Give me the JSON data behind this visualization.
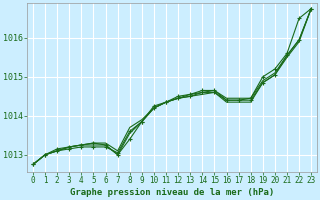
{
  "bg_color": "#cceeff",
  "plot_bg_color": "#cceeff",
  "grid_color": "#ffffff",
  "line_color": "#1a6b1a",
  "xlabel": "Graphe pression niveau de la mer (hPa)",
  "xlim": [
    -0.5,
    23.5
  ],
  "ylim": [
    1012.55,
    1016.9
  ],
  "yticks": [
    1013,
    1014,
    1015,
    1016
  ],
  "xticks": [
    0,
    1,
    2,
    3,
    4,
    5,
    6,
    7,
    8,
    9,
    10,
    11,
    12,
    13,
    14,
    15,
    16,
    17,
    18,
    19,
    20,
    21,
    22,
    23
  ],
  "series": [
    {
      "y": [
        1012.75,
        1013.0,
        1013.1,
        1013.15,
        1013.2,
        1013.2,
        1013.2,
        1013.05,
        1013.6,
        1013.85,
        1014.2,
        1014.35,
        1014.45,
        1014.5,
        1014.6,
        1014.6,
        1014.4,
        1014.4,
        1014.45,
        1015.0,
        1015.2,
        1015.6,
        1016.5,
        1016.75
      ],
      "marker": "+",
      "markersize": 3.5,
      "linewidth": 0.8
    },
    {
      "y": [
        1012.75,
        1013.0,
        1013.1,
        1013.2,
        1013.25,
        1013.25,
        1013.25,
        1013.0,
        1013.55,
        1013.85,
        1014.2,
        1014.35,
        1014.45,
        1014.5,
        1014.55,
        1014.6,
        1014.35,
        1014.35,
        1014.35,
        1014.85,
        1015.05,
        1015.5,
        1015.9,
        1016.75
      ],
      "marker": null,
      "markersize": 0,
      "linewidth": 0.8
    },
    {
      "y": [
        1012.75,
        1013.0,
        1013.1,
        1013.2,
        1013.25,
        1013.3,
        1013.3,
        1013.1,
        1013.7,
        1013.9,
        1014.2,
        1014.35,
        1014.45,
        1014.55,
        1014.6,
        1014.65,
        1014.45,
        1014.45,
        1014.45,
        1014.9,
        1015.1,
        1015.55,
        1015.95,
        1016.75
      ],
      "marker": null,
      "markersize": 0,
      "linewidth": 0.8
    },
    {
      "y": [
        1012.75,
        1013.0,
        1013.15,
        1013.2,
        1013.25,
        1013.3,
        1013.25,
        1013.0,
        1013.4,
        1013.85,
        1014.25,
        1014.35,
        1014.5,
        1014.55,
        1014.65,
        1014.65,
        1014.4,
        1014.4,
        1014.4,
        1014.85,
        1015.05,
        1015.55,
        1015.95,
        1016.75
      ],
      "marker": "+",
      "markersize": 3.5,
      "linewidth": 0.8
    }
  ],
  "title_fontsize": 6,
  "xlabel_fontsize": 6.5,
  "tick_fontsize": 5.5
}
